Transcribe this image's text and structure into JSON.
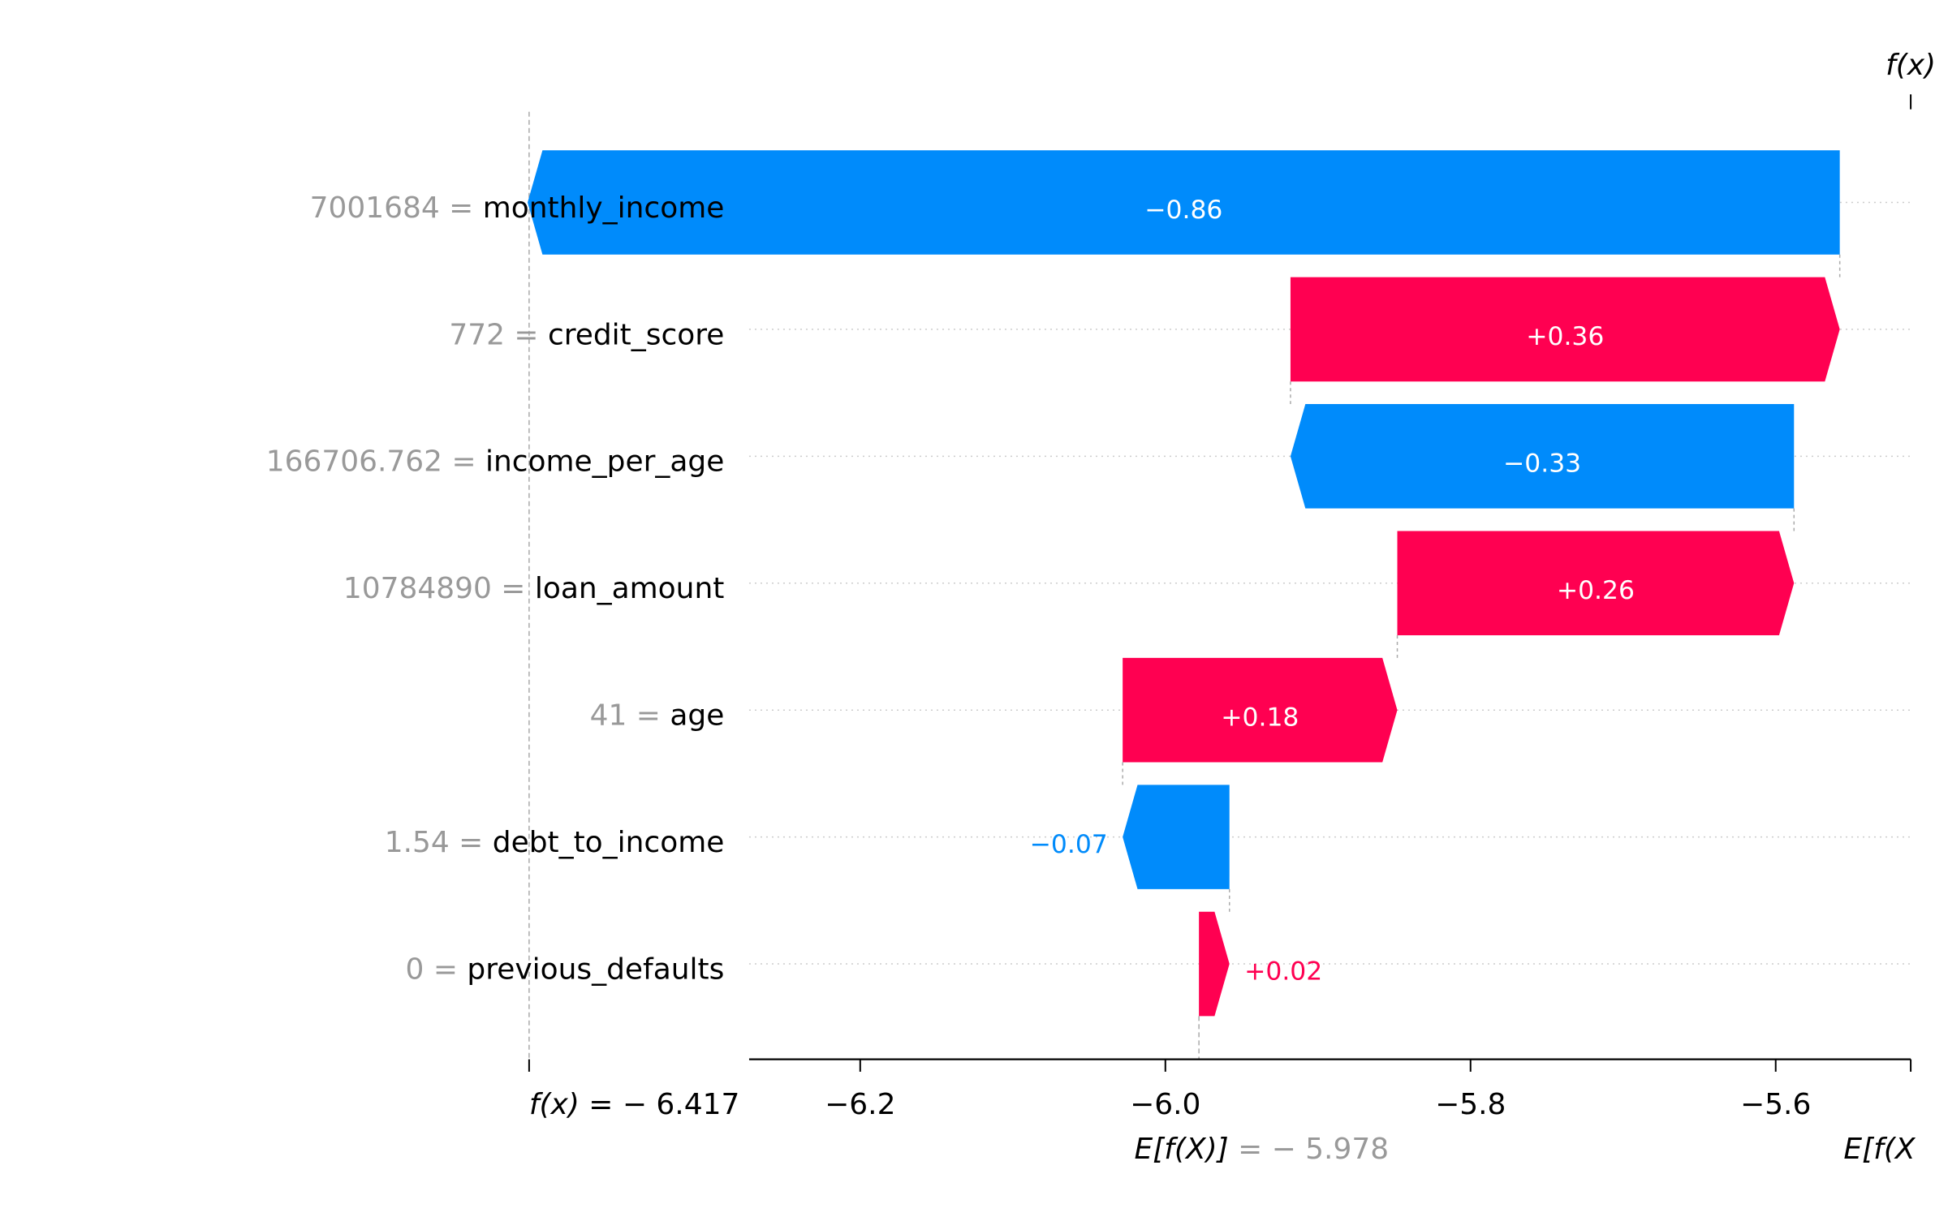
{
  "chart_data": {
    "type": "waterfall",
    "base_value": -5.978,
    "output_value": -6.417,
    "base_label_text": "E[f(X)]",
    "base_label_value": "= − 5.978",
    "output_label_text": "f(x)",
    "output_label_value": "= − 6.417",
    "top_fx_label": "f(x)",
    "bottom_right_label": "E[f(X",
    "xlim": [
      -6.2728,
      -5.5115
    ],
    "ticks": [
      {
        "value": -6.2,
        "label": "−6.2"
      },
      {
        "value": -6.0,
        "label": "−6.0"
      },
      {
        "value": -5.8,
        "label": "−5.8"
      },
      {
        "value": -5.6,
        "label": "−5.6"
      }
    ],
    "rows": [
      {
        "feature": "monthly_income",
        "value_text": "7001684",
        "contribution": -0.86,
        "label": "−0.86"
      },
      {
        "feature": "credit_score",
        "value_text": "772",
        "contribution": 0.36,
        "label": "+0.36"
      },
      {
        "feature": "income_per_age",
        "value_text": "166706.762",
        "contribution": -0.33,
        "label": "−0.33"
      },
      {
        "feature": "loan_amount",
        "value_text": "10784890",
        "contribution": 0.26,
        "label": "+0.26"
      },
      {
        "feature": "age",
        "value_text": "41",
        "contribution": 0.18,
        "label": "+0.18"
      },
      {
        "feature": "debt_to_income",
        "value_text": "1.54",
        "contribution": -0.07,
        "label": "−0.07"
      },
      {
        "feature": "previous_defaults",
        "value_text": "0",
        "contribution": 0.02,
        "label": "+0.02"
      }
    ],
    "colors": {
      "positive": "#ff0051",
      "negative": "#008bfb",
      "feature_value": "#999999",
      "feature_name": "#000000",
      "gridline": "#cccccc",
      "axis": "#000000"
    }
  }
}
